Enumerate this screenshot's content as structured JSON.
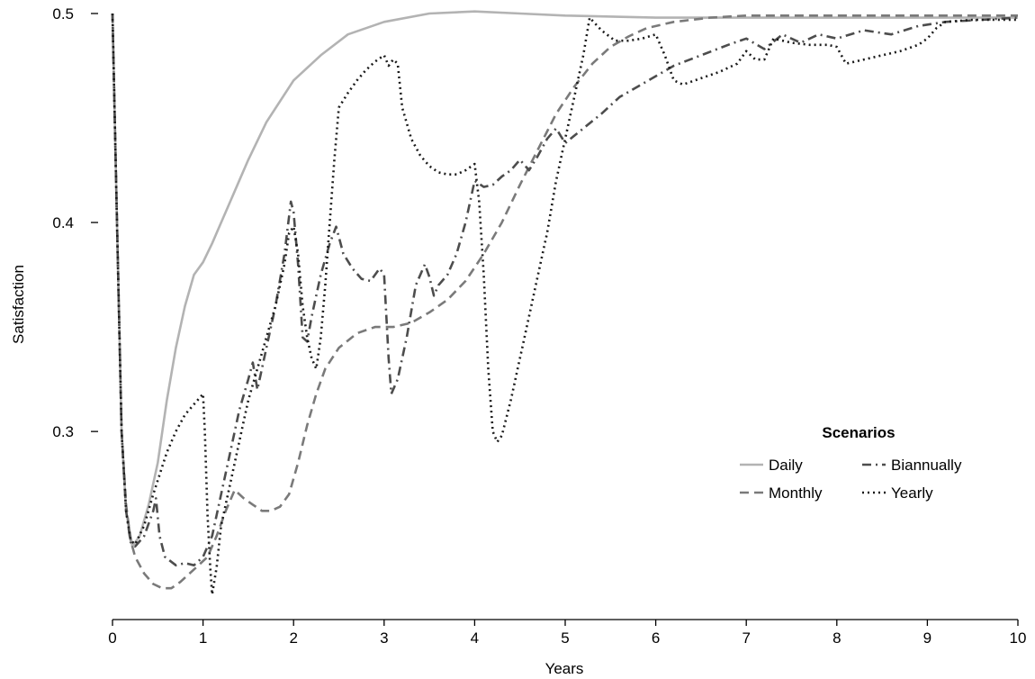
{
  "chart_data": {
    "type": "line",
    "xlabel": "Years",
    "ylabel": "Satisfaction",
    "xlim": [
      0,
      10
    ],
    "ylim": [
      0.21,
      0.5
    ],
    "x_ticks": [
      0,
      1,
      2,
      3,
      4,
      5,
      6,
      7,
      8,
      9,
      10
    ],
    "y_ticks": [
      0.3,
      0.4,
      0.5
    ],
    "y_tick_labels": [
      "0.3",
      "0.4",
      "0.5"
    ],
    "grid": false,
    "legend": {
      "title": "Scenarios",
      "placement": "bottom-right"
    },
    "series": [
      {
        "name": "Daily",
        "color": "#b3b3b3",
        "dash": "solid",
        "points": [
          [
            0,
            0.5
          ],
          [
            0.05,
            0.4
          ],
          [
            0.1,
            0.3
          ],
          [
            0.15,
            0.262
          ],
          [
            0.22,
            0.245
          ],
          [
            0.3,
            0.25
          ],
          [
            0.4,
            0.265
          ],
          [
            0.5,
            0.285
          ],
          [
            0.6,
            0.315
          ],
          [
            0.7,
            0.34
          ],
          [
            0.8,
            0.36
          ],
          [
            0.9,
            0.375
          ],
          [
            1.0,
            0.381
          ],
          [
            1.1,
            0.39
          ],
          [
            1.2,
            0.4
          ],
          [
            1.3,
            0.41
          ],
          [
            1.4,
            0.42
          ],
          [
            1.5,
            0.43
          ],
          [
            1.7,
            0.448
          ],
          [
            2.0,
            0.468
          ],
          [
            2.3,
            0.48
          ],
          [
            2.6,
            0.49
          ],
          [
            3.0,
            0.496
          ],
          [
            3.5,
            0.5
          ],
          [
            4.0,
            0.501
          ],
          [
            4.5,
            0.5
          ],
          [
            5.0,
            0.499
          ],
          [
            6.0,
            0.498
          ],
          [
            7.0,
            0.498
          ],
          [
            8.0,
            0.498
          ],
          [
            9.0,
            0.498
          ],
          [
            10.0,
            0.498
          ]
        ]
      },
      {
        "name": "Monthly",
        "color": "#7a7a7a",
        "dash": "dashed",
        "points": [
          [
            0,
            0.5
          ],
          [
            0.05,
            0.4
          ],
          [
            0.1,
            0.3
          ],
          [
            0.15,
            0.265
          ],
          [
            0.2,
            0.248
          ],
          [
            0.25,
            0.24
          ],
          [
            0.35,
            0.232
          ],
          [
            0.45,
            0.227
          ],
          [
            0.55,
            0.225
          ],
          [
            0.65,
            0.225
          ],
          [
            0.75,
            0.228
          ],
          [
            0.85,
            0.232
          ],
          [
            0.95,
            0.236
          ],
          [
            1.05,
            0.24
          ],
          [
            1.15,
            0.25
          ],
          [
            1.25,
            0.262
          ],
          [
            1.35,
            0.272
          ],
          [
            1.45,
            0.268
          ],
          [
            1.55,
            0.265
          ],
          [
            1.65,
            0.262
          ],
          [
            1.75,
            0.262
          ],
          [
            1.85,
            0.264
          ],
          [
            1.95,
            0.27
          ],
          [
            2.05,
            0.285
          ],
          [
            2.15,
            0.303
          ],
          [
            2.25,
            0.318
          ],
          [
            2.35,
            0.33
          ],
          [
            2.5,
            0.34
          ],
          [
            2.7,
            0.347
          ],
          [
            2.9,
            0.35
          ],
          [
            3.1,
            0.35
          ],
          [
            3.3,
            0.352
          ],
          [
            3.5,
            0.357
          ],
          [
            3.7,
            0.363
          ],
          [
            3.9,
            0.372
          ],
          [
            4.1,
            0.385
          ],
          [
            4.3,
            0.4
          ],
          [
            4.5,
            0.418
          ],
          [
            4.7,
            0.435
          ],
          [
            4.9,
            0.452
          ],
          [
            5.1,
            0.465
          ],
          [
            5.3,
            0.476
          ],
          [
            5.5,
            0.484
          ],
          [
            5.7,
            0.489
          ],
          [
            5.9,
            0.493
          ],
          [
            6.2,
            0.496
          ],
          [
            6.6,
            0.498
          ],
          [
            7.0,
            0.499
          ],
          [
            7.5,
            0.499
          ],
          [
            8.0,
            0.499
          ],
          [
            9.0,
            0.499
          ],
          [
            10.0,
            0.499
          ]
        ]
      },
      {
        "name": "Biannually",
        "color": "#4d4d4d",
        "dash": "dashdot",
        "points": [
          [
            0,
            0.5
          ],
          [
            0.05,
            0.4
          ],
          [
            0.1,
            0.3
          ],
          [
            0.15,
            0.262
          ],
          [
            0.2,
            0.247
          ],
          [
            0.25,
            0.245
          ],
          [
            0.35,
            0.25
          ],
          [
            0.45,
            0.262
          ],
          [
            0.48,
            0.268
          ],
          [
            0.52,
            0.25
          ],
          [
            0.58,
            0.24
          ],
          [
            0.7,
            0.236
          ],
          [
            0.8,
            0.237
          ],
          [
            0.9,
            0.236
          ],
          [
            1.0,
            0.24
          ],
          [
            1.05,
            0.245
          ],
          [
            1.1,
            0.25
          ],
          [
            1.2,
            0.27
          ],
          [
            1.3,
            0.29
          ],
          [
            1.4,
            0.31
          ],
          [
            1.5,
            0.325
          ],
          [
            1.55,
            0.333
          ],
          [
            1.6,
            0.32
          ],
          [
            1.7,
            0.34
          ],
          [
            1.8,
            0.36
          ],
          [
            1.9,
            0.385
          ],
          [
            1.97,
            0.41
          ],
          [
            2.0,
            0.405
          ],
          [
            2.05,
            0.38
          ],
          [
            2.1,
            0.345
          ],
          [
            2.15,
            0.343
          ],
          [
            2.2,
            0.355
          ],
          [
            2.3,
            0.375
          ],
          [
            2.4,
            0.39
          ],
          [
            2.47,
            0.398
          ],
          [
            2.55,
            0.385
          ],
          [
            2.65,
            0.378
          ],
          [
            2.75,
            0.373
          ],
          [
            2.85,
            0.372
          ],
          [
            2.95,
            0.378
          ],
          [
            3.0,
            0.375
          ],
          [
            3.05,
            0.335
          ],
          [
            3.08,
            0.318
          ],
          [
            3.15,
            0.325
          ],
          [
            3.25,
            0.345
          ],
          [
            3.35,
            0.37
          ],
          [
            3.45,
            0.38
          ],
          [
            3.5,
            0.374
          ],
          [
            3.55,
            0.365
          ],
          [
            3.6,
            0.37
          ],
          [
            3.7,
            0.375
          ],
          [
            3.8,
            0.385
          ],
          [
            3.9,
            0.4
          ],
          [
            4.0,
            0.42
          ],
          [
            4.1,
            0.417
          ],
          [
            4.2,
            0.418
          ],
          [
            4.3,
            0.422
          ],
          [
            4.4,
            0.425
          ],
          [
            4.5,
            0.43
          ],
          [
            4.6,
            0.425
          ],
          [
            4.7,
            0.432
          ],
          [
            4.8,
            0.44
          ],
          [
            4.9,
            0.445
          ],
          [
            5.0,
            0.438
          ],
          [
            5.2,
            0.445
          ],
          [
            5.4,
            0.452
          ],
          [
            5.6,
            0.46
          ],
          [
            5.8,
            0.465
          ],
          [
            6.0,
            0.47
          ],
          [
            6.2,
            0.475
          ],
          [
            6.5,
            0.48
          ],
          [
            6.8,
            0.485
          ],
          [
            7.0,
            0.488
          ],
          [
            7.2,
            0.483
          ],
          [
            7.4,
            0.49
          ],
          [
            7.6,
            0.486
          ],
          [
            7.8,
            0.49
          ],
          [
            8.0,
            0.488
          ],
          [
            8.3,
            0.492
          ],
          [
            8.6,
            0.49
          ],
          [
            8.9,
            0.494
          ],
          [
            9.2,
            0.496
          ],
          [
            9.6,
            0.497
          ],
          [
            10.0,
            0.498
          ]
        ]
      },
      {
        "name": "Yearly",
        "color": "#1a1a1a",
        "dash": "dotted",
        "points": [
          [
            0,
            0.5
          ],
          [
            0.05,
            0.4
          ],
          [
            0.1,
            0.3
          ],
          [
            0.15,
            0.262
          ],
          [
            0.2,
            0.248
          ],
          [
            0.25,
            0.246
          ],
          [
            0.35,
            0.255
          ],
          [
            0.45,
            0.27
          ],
          [
            0.6,
            0.29
          ],
          [
            0.7,
            0.3
          ],
          [
            0.8,
            0.308
          ],
          [
            0.9,
            0.313
          ],
          [
            1.0,
            0.318
          ],
          [
            1.02,
            0.3
          ],
          [
            1.05,
            0.26
          ],
          [
            1.08,
            0.235
          ],
          [
            1.1,
            0.222
          ],
          [
            1.15,
            0.235
          ],
          [
            1.2,
            0.255
          ],
          [
            1.3,
            0.275
          ],
          [
            1.4,
            0.295
          ],
          [
            1.5,
            0.315
          ],
          [
            1.6,
            0.33
          ],
          [
            1.7,
            0.345
          ],
          [
            1.8,
            0.36
          ],
          [
            1.9,
            0.38
          ],
          [
            1.95,
            0.395
          ],
          [
            2.0,
            0.398
          ],
          [
            2.05,
            0.385
          ],
          [
            2.1,
            0.36
          ],
          [
            2.15,
            0.345
          ],
          [
            2.2,
            0.335
          ],
          [
            2.25,
            0.33
          ],
          [
            2.3,
            0.345
          ],
          [
            2.35,
            0.37
          ],
          [
            2.4,
            0.4
          ],
          [
            2.45,
            0.43
          ],
          [
            2.5,
            0.455
          ],
          [
            2.6,
            0.462
          ],
          [
            2.7,
            0.468
          ],
          [
            2.8,
            0.473
          ],
          [
            2.9,
            0.477
          ],
          [
            3.0,
            0.48
          ],
          [
            3.05,
            0.475
          ],
          [
            3.1,
            0.478
          ],
          [
            3.15,
            0.476
          ],
          [
            3.2,
            0.455
          ],
          [
            3.3,
            0.44
          ],
          [
            3.4,
            0.432
          ],
          [
            3.5,
            0.427
          ],
          [
            3.6,
            0.424
          ],
          [
            3.7,
            0.423
          ],
          [
            3.8,
            0.423
          ],
          [
            3.9,
            0.425
          ],
          [
            4.0,
            0.428
          ],
          [
            4.05,
            0.41
          ],
          [
            4.1,
            0.375
          ],
          [
            4.15,
            0.33
          ],
          [
            4.2,
            0.3
          ],
          [
            4.25,
            0.295
          ],
          [
            4.3,
            0.298
          ],
          [
            4.4,
            0.315
          ],
          [
            4.5,
            0.335
          ],
          [
            4.6,
            0.355
          ],
          [
            4.7,
            0.375
          ],
          [
            4.8,
            0.395
          ],
          [
            4.9,
            0.42
          ],
          [
            5.0,
            0.44
          ],
          [
            5.1,
            0.46
          ],
          [
            5.2,
            0.48
          ],
          [
            5.27,
            0.498
          ],
          [
            5.4,
            0.492
          ],
          [
            5.55,
            0.487
          ],
          [
            5.7,
            0.487
          ],
          [
            5.85,
            0.488
          ],
          [
            6.0,
            0.49
          ],
          [
            6.1,
            0.48
          ],
          [
            6.2,
            0.468
          ],
          [
            6.3,
            0.466
          ],
          [
            6.5,
            0.469
          ],
          [
            6.7,
            0.472
          ],
          [
            6.9,
            0.476
          ],
          [
            7.0,
            0.482
          ],
          [
            7.1,
            0.478
          ],
          [
            7.2,
            0.478
          ],
          [
            7.3,
            0.488
          ],
          [
            7.5,
            0.486
          ],
          [
            7.7,
            0.485
          ],
          [
            7.9,
            0.485
          ],
          [
            8.0,
            0.484
          ],
          [
            8.1,
            0.476
          ],
          [
            8.3,
            0.478
          ],
          [
            8.5,
            0.48
          ],
          [
            8.7,
            0.482
          ],
          [
            8.9,
            0.485
          ],
          [
            9.0,
            0.488
          ],
          [
            9.1,
            0.493
          ],
          [
            9.2,
            0.496
          ],
          [
            9.5,
            0.497
          ],
          [
            10.0,
            0.497
          ]
        ]
      }
    ]
  }
}
